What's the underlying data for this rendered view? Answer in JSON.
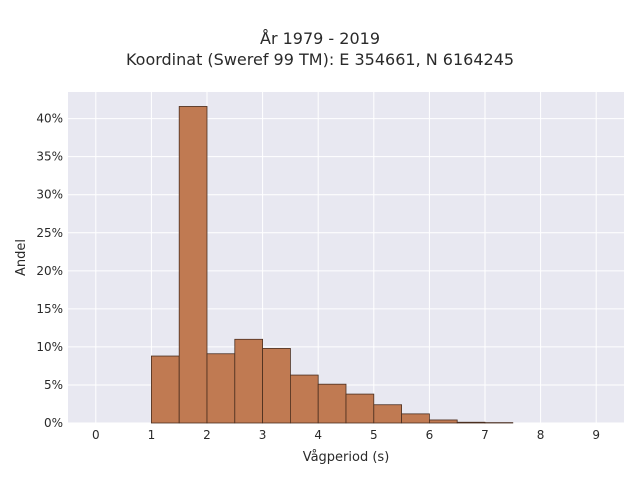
{
  "chart_data": {
    "type": "bar",
    "title_lines": [
      "År 1979 - 2019",
      "Koordinat (Sweref 99 TM): E 354661, N 6164245"
    ],
    "xlabel": "Vågperiod (s)",
    "ylabel": "Andel",
    "xlim": [
      -0.5,
      9.5
    ],
    "ylim": [
      0,
      0.435
    ],
    "x_ticks": [
      0,
      1,
      2,
      3,
      4,
      5,
      6,
      7,
      8,
      9
    ],
    "y_ticks": [
      0,
      0.05,
      0.1,
      0.15,
      0.2,
      0.25,
      0.3,
      0.35,
      0.4
    ],
    "y_tick_labels": [
      "0%",
      "5%",
      "10%",
      "15%",
      "20%",
      "25%",
      "30%",
      "35%",
      "40%"
    ],
    "bin_width": 0.5,
    "bins": [
      {
        "start": 1.0,
        "value": 0.088
      },
      {
        "start": 1.5,
        "value": 0.416
      },
      {
        "start": 2.0,
        "value": 0.091
      },
      {
        "start": 2.5,
        "value": 0.11
      },
      {
        "start": 3.0,
        "value": 0.098
      },
      {
        "start": 3.5,
        "value": 0.063
      },
      {
        "start": 4.0,
        "value": 0.051
      },
      {
        "start": 4.5,
        "value": 0.038
      },
      {
        "start": 5.0,
        "value": 0.024
      },
      {
        "start": 5.5,
        "value": 0.012
      },
      {
        "start": 6.0,
        "value": 0.004
      },
      {
        "start": 6.5,
        "value": 0.001
      },
      {
        "start": 7.0,
        "value": 0.0005
      }
    ],
    "grid": true,
    "bar_color": "#c07a52",
    "bar_edge_color": "#4a2e1f",
    "plot_bg": "#e8e8f1",
    "grid_color": "#ffffff"
  }
}
